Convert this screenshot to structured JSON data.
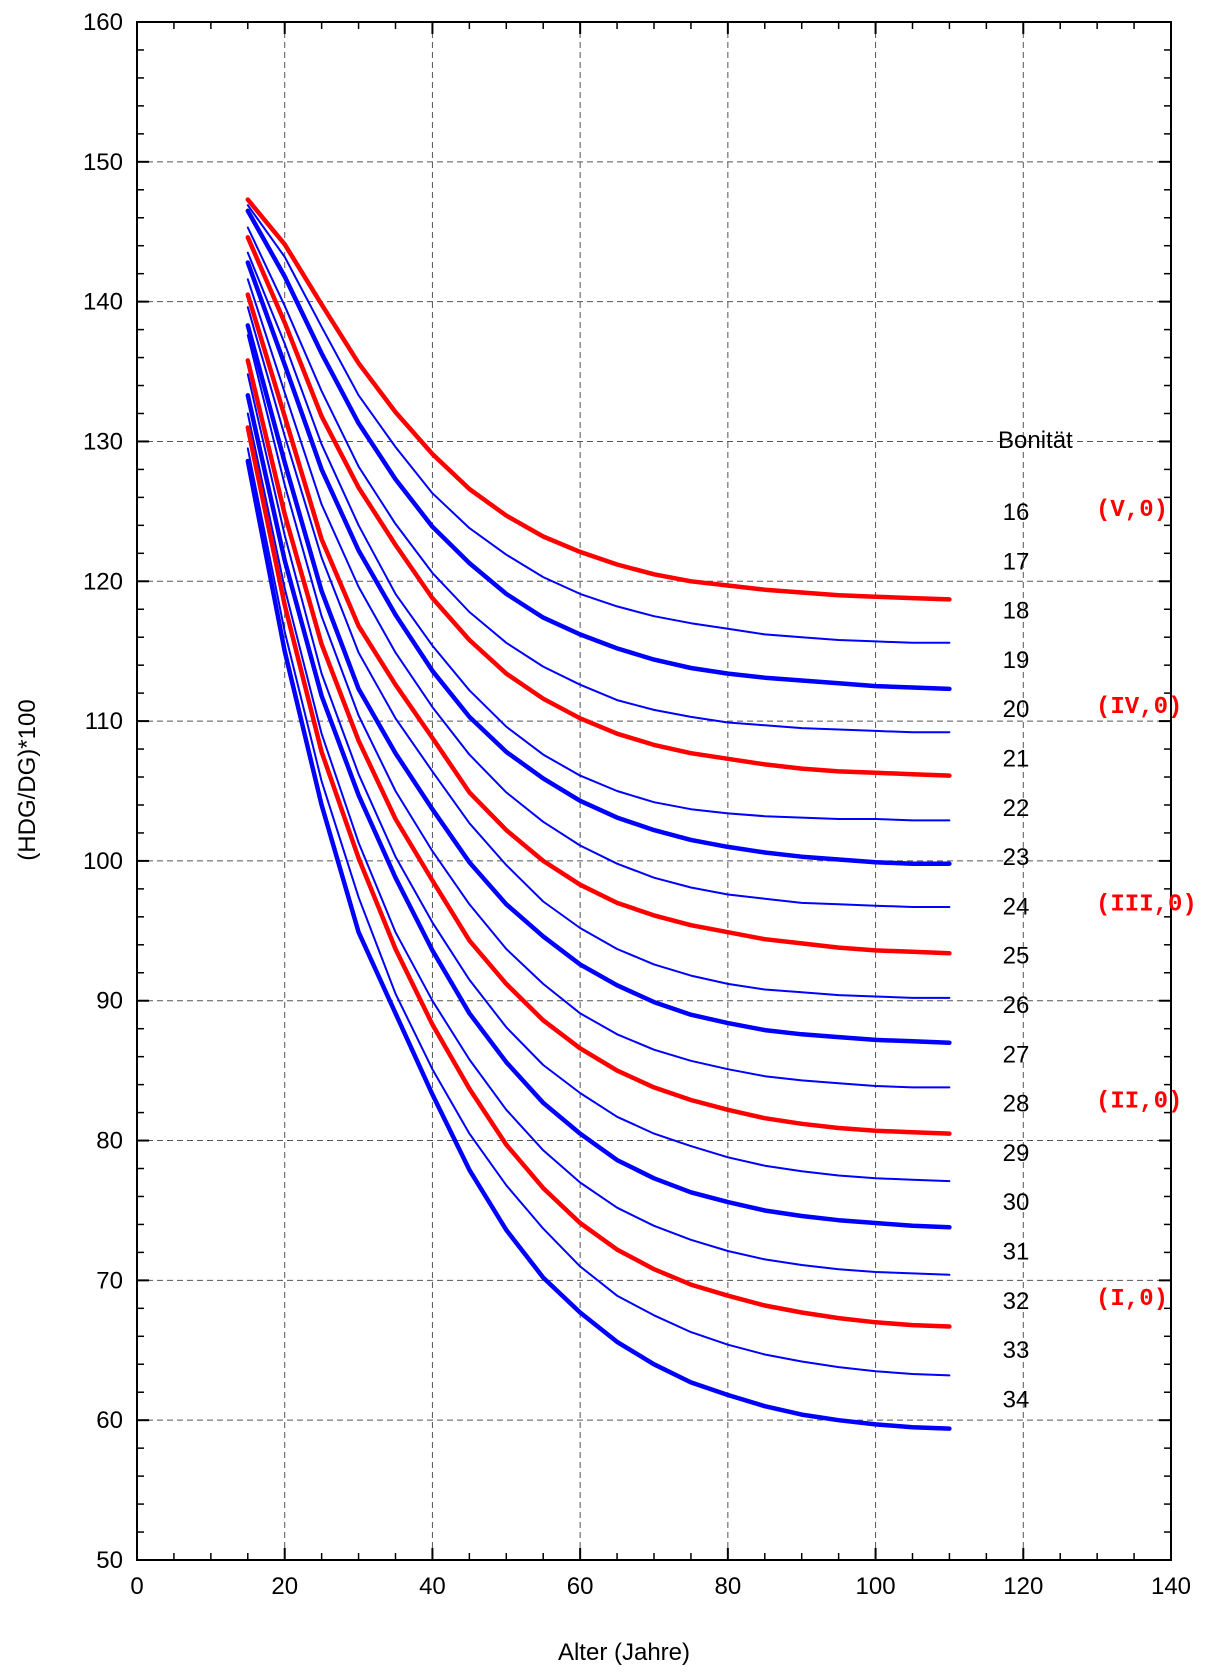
{
  "chart_data": {
    "type": "line",
    "xlabel": "Alter (Jahre)",
    "ylabel": "(HDG/DG)*100",
    "xlim": [
      0,
      140
    ],
    "ylim": [
      50,
      160
    ],
    "xticks": [
      0,
      20,
      40,
      60,
      80,
      100,
      120,
      140
    ],
    "yticks": [
      50,
      60,
      70,
      80,
      90,
      100,
      110,
      120,
      130,
      140,
      150,
      160
    ],
    "grid": true,
    "colors": {
      "red": "#ff0000",
      "blue": "#0000ff",
      "grid": "#555555",
      "axis": "#000000"
    },
    "x": [
      15,
      20,
      25,
      30,
      35,
      40,
      45,
      50,
      55,
      60,
      65,
      70,
      75,
      80,
      85,
      90,
      95,
      100,
      105,
      110
    ],
    "legend_title": "Bonität",
    "series": [
      {
        "name": "16",
        "color": "red",
        "weight": "thick",
        "values": [
          147.3,
          144.1,
          139.8,
          135.6,
          132.1,
          129.1,
          126.6,
          124.7,
          123.2,
          122.1,
          121.2,
          120.5,
          120.0,
          119.7,
          119.4,
          119.2,
          119.0,
          118.9,
          118.8,
          118.7
        ]
      },
      {
        "name": "17",
        "color": "blue",
        "weight": "thin",
        "values": [
          146.9,
          143.2,
          138.2,
          133.3,
          129.6,
          126.3,
          123.8,
          121.9,
          120.3,
          119.1,
          118.2,
          117.5,
          117.0,
          116.6,
          116.2,
          116.0,
          115.8,
          115.7,
          115.6,
          115.6
        ]
      },
      {
        "name": "18",
        "color": "blue",
        "weight": "thick",
        "values": [
          146.5,
          141.8,
          136.3,
          131.3,
          127.3,
          123.9,
          121.3,
          119.1,
          117.4,
          116.2,
          115.2,
          114.4,
          113.8,
          113.4,
          113.1,
          112.9,
          112.7,
          112.5,
          112.4,
          112.3
        ]
      },
      {
        "name": "19",
        "color": "blue",
        "weight": "thin",
        "values": [
          145.3,
          139.7,
          133.6,
          128.2,
          124.1,
          120.6,
          117.8,
          115.6,
          113.9,
          112.6,
          111.5,
          110.8,
          110.3,
          109.9,
          109.7,
          109.5,
          109.4,
          109.3,
          109.2,
          109.2
        ]
      },
      {
        "name": "20",
        "color": "red",
        "weight": "thick",
        "values": [
          144.6,
          138.5,
          131.8,
          126.7,
          122.6,
          118.8,
          115.8,
          113.4,
          111.6,
          110.2,
          109.1,
          108.3,
          107.7,
          107.3,
          106.9,
          106.6,
          106.4,
          106.3,
          106.2,
          106.1
        ]
      },
      {
        "name": "21",
        "color": "blue",
        "weight": "thin",
        "values": [
          143.5,
          137.0,
          129.8,
          124.0,
          119.1,
          115.4,
          112.2,
          109.6,
          107.6,
          106.1,
          105.0,
          104.2,
          103.7,
          103.4,
          103.2,
          103.1,
          103.0,
          103.0,
          102.9,
          102.9
        ]
      },
      {
        "name": "22",
        "color": "blue",
        "weight": "thick",
        "values": [
          142.8,
          135.5,
          128.0,
          122.2,
          117.6,
          113.6,
          110.3,
          107.8,
          105.9,
          104.3,
          103.1,
          102.2,
          101.5,
          101.0,
          100.6,
          100.3,
          100.1,
          99.9,
          99.8,
          99.8
        ]
      },
      {
        "name": "23",
        "color": "blue",
        "weight": "thin",
        "values": [
          141.6,
          133.5,
          125.5,
          119.6,
          114.9,
          111.0,
          107.6,
          104.9,
          102.8,
          101.1,
          99.8,
          98.8,
          98.1,
          97.6,
          97.3,
          97.0,
          96.9,
          96.8,
          96.7,
          96.7
        ]
      },
      {
        "name": "24",
        "color": "red",
        "weight": "thick",
        "values": [
          140.5,
          131.8,
          123.0,
          116.8,
          112.6,
          108.8,
          104.9,
          102.2,
          100.0,
          98.3,
          97.0,
          96.1,
          95.4,
          94.9,
          94.4,
          94.1,
          93.8,
          93.6,
          93.5,
          93.4
        ]
      },
      {
        "name": "25",
        "color": "blue",
        "weight": "thin",
        "values": [
          139.6,
          130.4,
          121.7,
          114.9,
          110.2,
          106.4,
          102.7,
          99.7,
          97.1,
          95.2,
          93.7,
          92.6,
          91.8,
          91.2,
          90.8,
          90.6,
          90.4,
          90.3,
          90.2,
          90.2
        ]
      },
      {
        "name": "26",
        "color": "blue",
        "weight": "thick",
        "values": [
          138.3,
          128.5,
          119.3,
          112.3,
          107.7,
          103.7,
          99.9,
          96.9,
          94.6,
          92.6,
          91.1,
          89.9,
          89.0,
          88.4,
          87.9,
          87.6,
          87.4,
          87.2,
          87.1,
          87.0
        ]
      },
      {
        "name": "27",
        "color": "blue",
        "weight": "thin",
        "values": [
          137.6,
          126.9,
          117.5,
          110.4,
          105.0,
          100.7,
          96.9,
          93.7,
          91.2,
          89.1,
          87.6,
          86.5,
          85.7,
          85.1,
          84.6,
          84.3,
          84.1,
          83.9,
          83.8,
          83.8
        ]
      },
      {
        "name": "28",
        "color": "red",
        "weight": "thick",
        "values": [
          135.8,
          124.8,
          115.5,
          108.6,
          103.0,
          98.6,
          94.3,
          91.2,
          88.6,
          86.6,
          85.0,
          83.8,
          82.9,
          82.2,
          81.6,
          81.2,
          80.9,
          80.7,
          80.6,
          80.5
        ]
      },
      {
        "name": "29",
        "color": "blue",
        "weight": "thin",
        "values": [
          134.8,
          123.3,
          113.4,
          106.2,
          100.3,
          95.6,
          91.5,
          88.1,
          85.4,
          83.4,
          81.7,
          80.5,
          79.6,
          78.8,
          78.2,
          77.8,
          77.5,
          77.3,
          77.2,
          77.1
        ]
      },
      {
        "name": "30",
        "color": "blue",
        "weight": "thick",
        "values": [
          133.3,
          121.5,
          111.8,
          104.7,
          98.8,
          93.6,
          89.1,
          85.6,
          82.7,
          80.5,
          78.6,
          77.3,
          76.3,
          75.6,
          75.0,
          74.6,
          74.3,
          74.1,
          73.9,
          73.8
        ]
      },
      {
        "name": "31",
        "color": "blue",
        "weight": "thin",
        "values": [
          132.0,
          119.5,
          109.1,
          101.3,
          94.9,
          90.0,
          85.8,
          82.2,
          79.3,
          77.0,
          75.2,
          73.9,
          72.9,
          72.1,
          71.5,
          71.1,
          70.8,
          70.6,
          70.5,
          70.4
        ]
      },
      {
        "name": "32",
        "color": "red",
        "weight": "thick",
        "values": [
          131.0,
          118.3,
          107.8,
          100.2,
          93.7,
          88.3,
          83.7,
          79.7,
          76.6,
          74.1,
          72.2,
          70.8,
          69.7,
          68.9,
          68.2,
          67.7,
          67.3,
          67.0,
          66.8,
          66.7
        ]
      },
      {
        "name": "33",
        "color": "blue",
        "weight": "thin",
        "values": [
          129.5,
          116.4,
          105.7,
          97.4,
          90.5,
          85.1,
          80.5,
          76.8,
          73.7,
          71.0,
          68.9,
          67.5,
          66.3,
          65.4,
          64.7,
          64.2,
          63.8,
          63.5,
          63.3,
          63.2
        ]
      },
      {
        "name": "34",
        "color": "blue",
        "weight": "thick",
        "values": [
          128.6,
          115.0,
          104.0,
          94.9,
          89.1,
          83.3,
          77.9,
          73.6,
          70.2,
          67.7,
          65.6,
          64.0,
          62.7,
          61.8,
          61.0,
          60.4,
          60.0,
          59.7,
          59.5,
          59.4
        ]
      }
    ],
    "bonitat_labels": [
      "16",
      "17",
      "18",
      "19",
      "20",
      "21",
      "22",
      "23",
      "24",
      "25",
      "26",
      "27",
      "28",
      "29",
      "30",
      "31",
      "32",
      "33",
      "34"
    ],
    "class_labels": [
      {
        "text": "(V,0)",
        "bonitat": "16"
      },
      {
        "text": "(IV,0)",
        "bonitat": "20"
      },
      {
        "text": "(III,0)",
        "bonitat": "24"
      },
      {
        "text": "(II,0)",
        "bonitat": "28"
      },
      {
        "text": "(I,0)",
        "bonitat": "32"
      }
    ]
  }
}
